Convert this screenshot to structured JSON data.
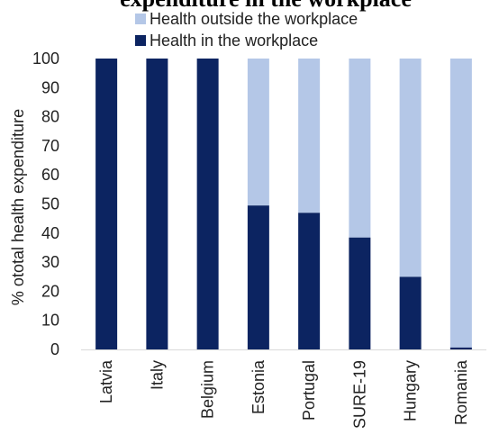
{
  "chart_data": {
    "type": "bar",
    "stacked": true,
    "title": "expenditure in the workplace",
    "ylabel": "% ototal health expenditure",
    "xlabel": "",
    "ylim": [
      0,
      100
    ],
    "yticks": [
      0,
      10,
      20,
      30,
      40,
      50,
      60,
      70,
      80,
      90,
      100
    ],
    "grid": false,
    "legend_position": "top",
    "categories": [
      "Latvia",
      "Italy",
      "Belgium",
      "Estonia",
      "Portugal",
      "SURE-19",
      "Hungary",
      "Romania"
    ],
    "series": [
      {
        "name": "Health in the workplace",
        "color": "#0c2461",
        "values": [
          100,
          100,
          100,
          49.5,
          47,
          38.5,
          25,
          0.7
        ]
      },
      {
        "name": "Health outside the workplace",
        "color": "#b4c7e7",
        "values": [
          0,
          0,
          0,
          50.5,
          53,
          61.5,
          75,
          99.3
        ]
      }
    ],
    "legend_order": [
      "Health outside the workplace",
      "Health in the workplace"
    ]
  }
}
